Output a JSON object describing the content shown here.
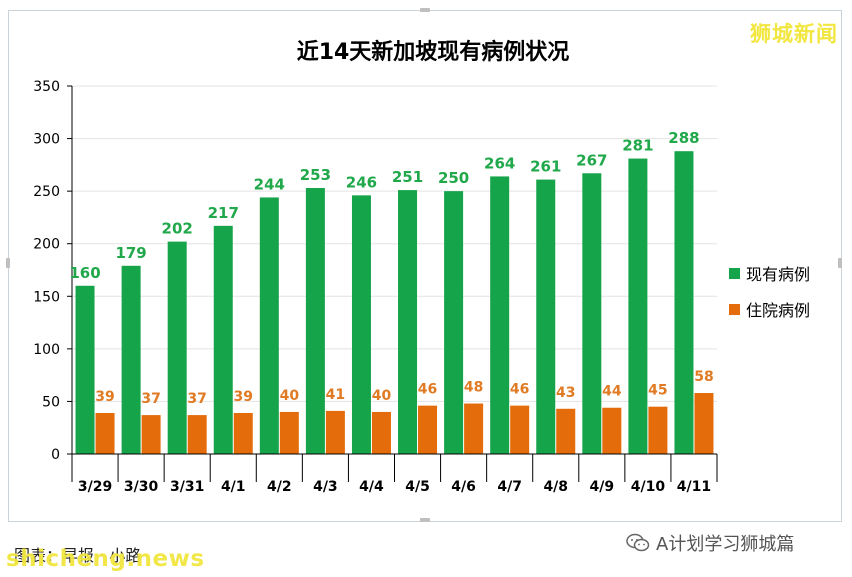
{
  "brand": "狮城新闻",
  "footer": {
    "wechat_account": "A计划学习狮城篇",
    "credit": "图表：早报 · 小路",
    "watermark": "shicheng.news"
  },
  "chart_data": {
    "type": "bar",
    "title": "近14天新加坡现有病例状况",
    "categories": [
      "3/29",
      "3/30",
      "3/31",
      "4/1",
      "4/2",
      "4/3",
      "4/4",
      "4/5",
      "4/6",
      "4/7",
      "4/8",
      "4/9",
      "4/10",
      "4/11"
    ],
    "series": [
      {
        "name": "现有病例",
        "color": "#16a44a",
        "label_color": "#20a84b",
        "values": [
          160,
          179,
          202,
          217,
          244,
          253,
          246,
          251,
          250,
          264,
          261,
          267,
          281,
          288
        ]
      },
      {
        "name": "住院病例",
        "color": "#e46c0a",
        "label_color": "#e07a23",
        "values": [
          39,
          37,
          37,
          39,
          40,
          41,
          40,
          46,
          48,
          46,
          43,
          44,
          45,
          58
        ]
      }
    ],
    "ylim": [
      0,
      350
    ],
    "yticks": [
      0,
      50,
      100,
      150,
      200,
      250,
      300,
      350
    ],
    "grid": true,
    "legend_position": "right"
  }
}
